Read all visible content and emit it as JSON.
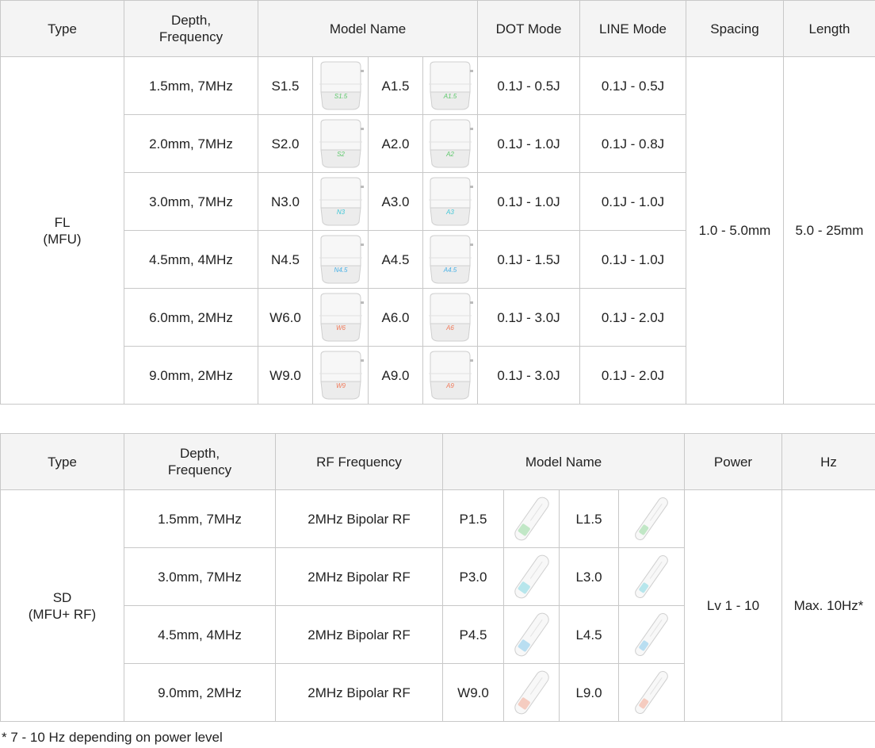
{
  "fl_table": {
    "headers": {
      "type": "Type",
      "depth": "Depth,\nFrequency",
      "model": "Model Name",
      "dot": "DOT Mode",
      "line": "LINE Mode",
      "spacing": "Spacing",
      "length": "Length"
    },
    "type_label": "FL\n(MFU)",
    "spacing": "1.0 - 5.0mm",
    "length": "5.0 - 25mm",
    "rows": [
      {
        "depth": "1.5mm, 7MHz",
        "model_s": "S1.5",
        "img_s": "S1.5",
        "model_a": "A1.5",
        "img_a": "A1.5",
        "dot": "0.1J - 0.5J",
        "line": "0.1J - 0.5J",
        "color": "#5cc86a"
      },
      {
        "depth": "2.0mm, 7MHz",
        "model_s": "S2.0",
        "img_s": "S2",
        "model_a": "A2.0",
        "img_a": "A2",
        "dot": "0.1J - 1.0J",
        "line": "0.1J - 0.8J",
        "color": "#5cc86a"
      },
      {
        "depth": "3.0mm, 7MHz",
        "model_s": "N3.0",
        "img_s": "N3",
        "model_a": "A3.0",
        "img_a": "A3",
        "dot": "0.1J - 1.0J",
        "line": "0.1J - 1.0J",
        "color": "#3ec6d6"
      },
      {
        "depth": "4.5mm, 4MHz",
        "model_s": "N4.5",
        "img_s": "N4.5",
        "model_a": "A4.5",
        "img_a": "A4.5",
        "dot": "0.1J - 1.5J",
        "line": "0.1J - 1.0J",
        "color": "#46b0e6"
      },
      {
        "depth": "6.0mm, 2MHz",
        "model_s": "W6.0",
        "img_s": "W6",
        "model_a": "A6.0",
        "img_a": "A6",
        "dot": "0.1J - 3.0J",
        "line": "0.1J - 2.0J",
        "color": "#f07a5a"
      },
      {
        "depth": "9.0mm, 2MHz",
        "model_s": "W9.0",
        "img_s": "W9",
        "model_a": "A9.0",
        "img_a": "A9",
        "dot": "0.1J - 3.0J",
        "line": "0.1J - 2.0J",
        "color": "#f07a5a"
      }
    ]
  },
  "sd_table": {
    "headers": {
      "type": "Type",
      "depth": "Depth,\nFrequency",
      "rf": "RF Frequency",
      "model": "Model Name",
      "power": "Power",
      "hz": "Hz"
    },
    "type_label": "SD\n(MFU+ RF)",
    "power": "Lv 1 - 10",
    "hz": "Max. 10Hz*",
    "rows": [
      {
        "depth": "1.5mm, 7MHz",
        "rf": "2MHz Bipolar RF",
        "model_p": "P1.5",
        "model_l": "L1.5",
        "color": "#5cc86a"
      },
      {
        "depth": "3.0mm, 7MHz",
        "rf": "2MHz Bipolar RF",
        "model_p": "P3.0",
        "model_l": "L3.0",
        "color": "#3ec6d6"
      },
      {
        "depth": "4.5mm, 4MHz",
        "rf": "2MHz Bipolar RF",
        "model_p": "P4.5",
        "model_l": "L4.5",
        "color": "#46b0e6"
      },
      {
        "depth": "9.0mm, 2MHz",
        "rf": "2MHz Bipolar RF",
        "model_p": "W9.0",
        "model_l": "L9.0",
        "color": "#f07a5a"
      }
    ]
  },
  "footnote": "* 7 - 10 Hz depending on power level"
}
